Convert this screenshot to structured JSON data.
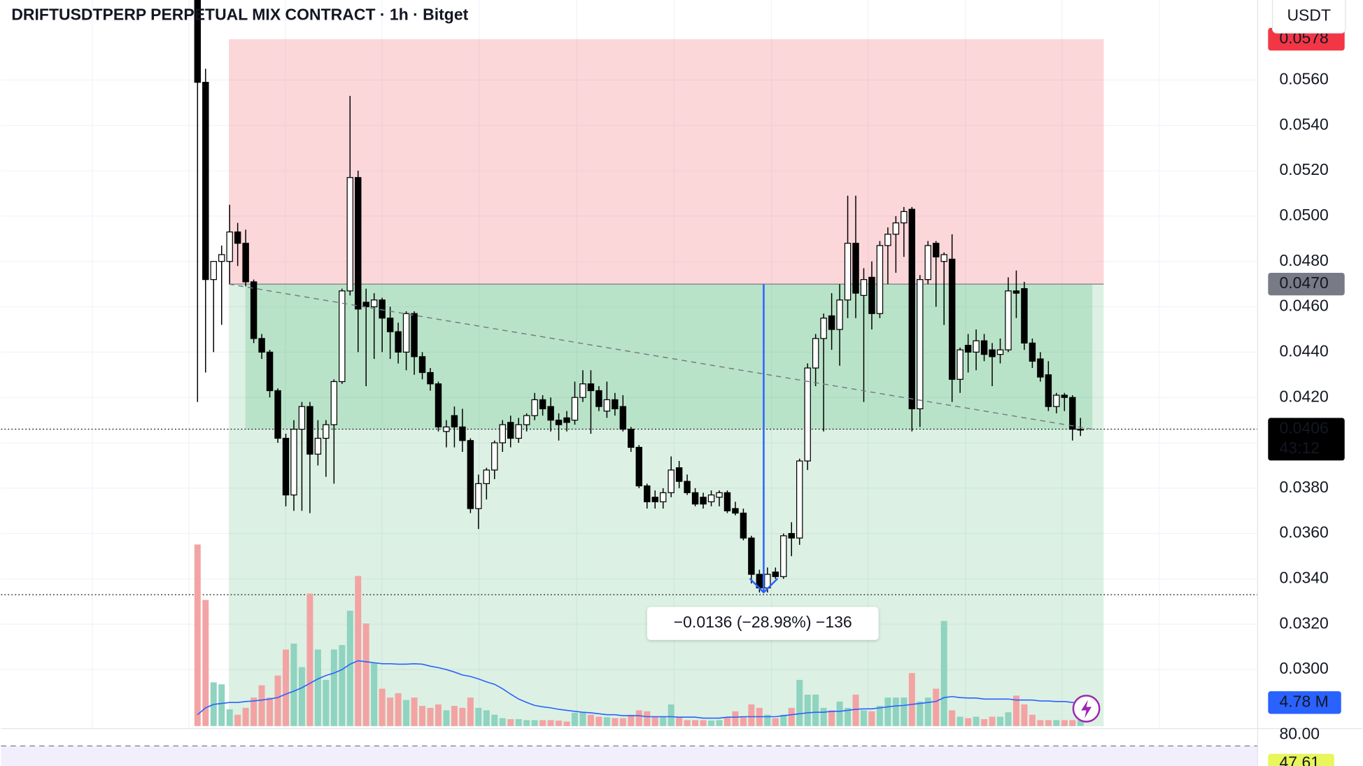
{
  "chart_data": {
    "type": "candlestick",
    "title": "DRIFTUSDTPERP PERPETUAL MIX CONTRACT · 1h · Bitget",
    "unit": "USDT",
    "open": [
      0.06,
      0.0559,
      0.0472,
      0.048,
      0.048,
      0.0493,
      0.0488,
      0.0471,
      0.0446,
      0.044,
      0.0423,
      0.0402,
      0.0377,
      0.0406,
      0.0416,
      0.0395,
      0.0402,
      0.0408,
      0.0427,
      0.0467,
      0.0517,
      0.0462,
      0.046,
      0.0463,
      0.0455,
      0.0449,
      0.044,
      0.0457,
      0.0438,
      0.0431,
      0.0426,
      0.0405,
      0.0412,
      0.0407,
      0.0401,
      0.0371,
      0.0382,
      0.0388,
      0.04,
      0.0409,
      0.0402,
      0.0408,
      0.0412,
      0.0419,
      0.0416,
      0.041,
      0.0411,
      0.041,
      0.042,
      0.0426,
      0.0423,
      0.0414,
      0.0419,
      0.0416,
      0.0406,
      0.0398,
      0.0381,
      0.0376,
      0.0374,
      0.0378,
      0.0389,
      0.0383,
      0.0378,
      0.0376,
      0.0374,
      0.0376,
      0.0378,
      0.0371,
      0.0369,
      0.0358,
      0.0342,
      0.0336,
      0.0343,
      0.0341,
      0.036,
      0.0358,
      0.0392,
      0.0433,
      0.0446,
      0.0456,
      0.045,
      0.0463,
      0.0488,
      0.0465,
      0.0473,
      0.0457,
      0.0487,
      0.0492,
      0.0497,
      0.0503,
      0.0415,
      0.0472,
      0.0488,
      0.048,
      0.0481,
      0.0428,
      0.0443,
      0.044,
      0.0445,
      0.0441,
      0.0439,
      0.0441,
      0.0467,
      0.0468,
      0.0444,
      0.0437,
      0.043,
      0.0416,
      0.0421,
      0.042,
      0.0406
    ],
    "high": [
      0.061,
      0.0565,
      0.048,
      0.0487,
      0.0505,
      0.0497,
      0.0494,
      0.0472,
      0.0448,
      0.0441,
      0.0424,
      0.0404,
      0.041,
      0.0418,
      0.0418,
      0.041,
      0.041,
      0.0428,
      0.0468,
      0.0553,
      0.052,
      0.0468,
      0.0466,
      0.0464,
      0.046,
      0.0453,
      0.0458,
      0.0458,
      0.044,
      0.0433,
      0.0427,
      0.041,
      0.0416,
      0.0415,
      0.0402,
      0.0386,
      0.0389,
      0.0401,
      0.041,
      0.0412,
      0.0411,
      0.0413,
      0.0422,
      0.0421,
      0.042,
      0.0413,
      0.0414,
      0.0427,
      0.0432,
      0.0432,
      0.0425,
      0.0427,
      0.0422,
      0.0421,
      0.0407,
      0.0399,
      0.0382,
      0.0379,
      0.038,
      0.0394,
      0.0392,
      0.0386,
      0.038,
      0.0378,
      0.0379,
      0.0379,
      0.0379,
      0.0374,
      0.0371,
      0.0359,
      0.0344,
      0.0345,
      0.0345,
      0.036,
      0.0365,
      0.0393,
      0.0435,
      0.0448,
      0.0457,
      0.0466,
      0.047,
      0.0509,
      0.0509,
      0.0477,
      0.048,
      0.0489,
      0.0495,
      0.05,
      0.0504,
      0.0504,
      0.0474,
      0.0489,
      0.0489,
      0.0484,
      0.0492,
      0.0442,
      0.0448,
      0.045,
      0.0448,
      0.0444,
      0.0446,
      0.0473,
      0.0476,
      0.0471,
      0.0446,
      0.044,
      0.0436,
      0.0422,
      0.0422,
      0.0421,
      0.0411
    ],
    "low": [
      0.0418,
      0.0431,
      0.044,
      0.0452,
      0.047,
      0.0478,
      0.0469,
      0.0444,
      0.0437,
      0.042,
      0.04,
      0.0372,
      0.037,
      0.037,
      0.0369,
      0.039,
      0.0385,
      0.0382,
      0.0426,
      0.0465,
      0.044,
      0.0425,
      0.0437,
      0.044,
      0.0437,
      0.0435,
      0.0432,
      0.043,
      0.0428,
      0.0423,
      0.0405,
      0.0398,
      0.0398,
      0.0396,
      0.0369,
      0.0362,
      0.0375,
      0.0384,
      0.0396,
      0.0398,
      0.04,
      0.0405,
      0.041,
      0.0412,
      0.0405,
      0.0401,
      0.0405,
      0.0408,
      0.0418,
      0.0404,
      0.0414,
      0.0411,
      0.0412,
      0.0405,
      0.0396,
      0.038,
      0.0371,
      0.0371,
      0.0371,
      0.0376,
      0.038,
      0.0377,
      0.0372,
      0.0371,
      0.0372,
      0.0372,
      0.0369,
      0.0368,
      0.0357,
      0.0338,
      0.0334,
      0.0334,
      0.034,
      0.034,
      0.035,
      0.0355,
      0.0388,
      0.0425,
      0.0405,
      0.0441,
      0.0434,
      0.0455,
      0.0455,
      0.0418,
      0.045,
      0.0455,
      0.047,
      0.0475,
      0.0482,
      0.0405,
      0.0407,
      0.047,
      0.046,
      0.0452,
      0.0418,
      0.0422,
      0.0431,
      0.0432,
      0.0436,
      0.0425,
      0.0435,
      0.044,
      0.0455,
      0.0441,
      0.0433,
      0.0427,
      0.0414,
      0.0413,
      0.0414,
      0.0401,
      0.0403
    ],
    "close": [
      0.0559,
      0.0472,
      0.048,
      0.0483,
      0.0493,
      0.0488,
      0.0471,
      0.0446,
      0.044,
      0.0423,
      0.0402,
      0.0377,
      0.0406,
      0.0416,
      0.0395,
      0.0402,
      0.0408,
      0.0427,
      0.0467,
      0.0517,
      0.0459,
      0.046,
      0.0463,
      0.0455,
      0.0449,
      0.044,
      0.0457,
      0.0438,
      0.0431,
      0.0426,
      0.0407,
      0.0407,
      0.0407,
      0.0401,
      0.0371,
      0.0382,
      0.0388,
      0.04,
      0.0408,
      0.0402,
      0.0408,
      0.0412,
      0.0419,
      0.0415,
      0.041,
      0.0408,
      0.0409,
      0.042,
      0.0426,
      0.0423,
      0.0416,
      0.0419,
      0.0415,
      0.0406,
      0.0398,
      0.0381,
      0.0374,
      0.0374,
      0.0378,
      0.0388,
      0.0383,
      0.0378,
      0.0373,
      0.0373,
      0.0377,
      0.0378,
      0.037,
      0.0369,
      0.0358,
      0.0342,
      0.0336,
      0.0342,
      0.0341,
      0.0359,
      0.0358,
      0.0392,
      0.0433,
      0.0446,
      0.0455,
      0.045,
      0.0463,
      0.0488,
      0.0466,
      0.0472,
      0.0457,
      0.0487,
      0.0492,
      0.0497,
      0.0502,
      0.0415,
      0.0472,
      0.0487,
      0.0482,
      0.0483,
      0.0428,
      0.0441,
      0.044,
      0.0445,
      0.0439,
      0.0438,
      0.0441,
      0.0467,
      0.0466,
      0.0444,
      0.0436,
      0.0429,
      0.0416,
      0.0421,
      0.042,
      0.0406,
      0.0406
    ],
    "up_color": "#ffffff",
    "down_color": "#000000",
    "ylim": [
      0.02751,
      0.05953
    ],
    "yticks": [
      {
        "value": 0.03,
        "label": "0.0300"
      },
      {
        "value": 0.032,
        "label": "0.0320"
      },
      {
        "value": 0.034,
        "label": "0.0340"
      },
      {
        "value": 0.036,
        "label": "0.0360"
      },
      {
        "value": 0.038,
        "label": "0.0380"
      },
      {
        "value": 0.04,
        "label": "0.0400"
      },
      {
        "value": 0.042,
        "label": "0.0420"
      },
      {
        "value": 0.044,
        "label": "0.0440"
      },
      {
        "value": 0.046,
        "label": "0.0460"
      },
      {
        "value": 0.048,
        "label": "0.0480"
      },
      {
        "value": 0.05,
        "label": "0.0500"
      },
      {
        "value": 0.052,
        "label": "0.0520"
      },
      {
        "value": 0.054,
        "label": "0.0540"
      },
      {
        "value": 0.056,
        "label": "0.0560"
      }
    ],
    "grid": true,
    "last_price_label": "0.0406",
    "countdown": "43:12",
    "horizontal_lines": [
      0.0333
    ],
    "volume": {
      "values": [
        37.0,
        25.7,
        8.9,
        8.5,
        3.4,
        2.3,
        3.7,
        5.8,
        8.3,
        5.8,
        10.3,
        15.6,
        16.8,
        12.0,
        27.0,
        15.6,
        9.4,
        15.6,
        16.5,
        23.5,
        30.6,
        20.9,
        12.9,
        7.6,
        5.8,
        6.7,
        5.3,
        5.8,
        4.1,
        3.7,
        4.4,
        3.2,
        4.1,
        3.7,
        5.8,
        3.7,
        3.2,
        2.3,
        1.6,
        1.4,
        1.4,
        1.2,
        1.2,
        1.2,
        1.2,
        1.1,
        0.9,
        2.7,
        2.7,
        2.3,
        1.9,
        1.8,
        1.6,
        1.6,
        2.3,
        3.2,
        3.0,
        1.9,
        1.9,
        4.4,
        1.9,
        1.2,
        1.2,
        1.2,
        1.1,
        1.2,
        1.8,
        3.0,
        1.9,
        4.4,
        3.7,
        2.3,
        1.6,
        2.3,
        3.7,
        9.4,
        6.4,
        6.4,
        3.7,
        3.2,
        5.0,
        3.7,
        6.4,
        3.2,
        3.0,
        4.1,
        5.8,
        5.8,
        5.8,
        10.8,
        5.0,
        5.8,
        7.6,
        21.4,
        3.2,
        1.9,
        1.6,
        1.9,
        1.4,
        1.9,
        1.9,
        2.8,
        6.2,
        4.4,
        2.3,
        1.2,
        1.2,
        1.2,
        1.2,
        1.2,
        1.2
      ],
      "ylim": [
        0,
        148
      ],
      "up_color": "#8fd3c0",
      "down_color": "#f3a3a3",
      "ma": [
        2.3,
        3.7,
        4.4,
        4.6,
        4.8,
        4.8,
        5.0,
        5.1,
        5.3,
        5.5,
        5.8,
        6.5,
        7.1,
        7.8,
        8.7,
        9.6,
        10.3,
        10.8,
        11.5,
        12.6,
        13.3,
        13.1,
        12.9,
        12.7,
        12.7,
        12.6,
        12.6,
        12.7,
        12.6,
        12.2,
        11.9,
        11.5,
        11.0,
        10.4,
        10.1,
        9.6,
        9.0,
        8.5,
        7.6,
        6.5,
        5.5,
        4.8,
        4.2,
        3.9,
        3.7,
        3.4,
        3.2,
        3.0,
        2.8,
        2.7,
        2.5,
        2.3,
        2.3,
        2.1,
        2.1,
        2.1,
        1.9,
        1.9,
        1.9,
        1.9,
        1.8,
        1.8,
        1.8,
        1.6,
        1.6,
        1.6,
        1.8,
        1.8,
        1.9,
        1.9,
        1.9,
        1.9,
        1.9,
        2.1,
        2.3,
        2.5,
        2.7,
        2.8,
        2.8,
        3.0,
        3.0,
        3.2,
        3.4,
        3.5,
        3.5,
        3.7,
        3.9,
        4.1,
        4.2,
        4.4,
        4.6,
        4.8,
        5.0,
        5.8,
        6.0,
        5.8,
        5.7,
        5.7,
        5.5,
        5.5,
        5.5,
        5.5,
        5.3,
        5.3,
        5.3,
        5.1,
        5.1,
        5.0,
        5.0,
        4.8,
        4.78
      ],
      "ma_color": "#2962ff",
      "ma_last_label": "4.78 M"
    },
    "position": {
      "entry": 0.047,
      "entry_label": "0.0470",
      "stop": 0.0578,
      "stop_label": "0.0578",
      "target": 0.0275
    },
    "trend_line": [
      0.047,
      0.0406
    ],
    "measure": {
      "from": 0.047,
      "to": 0.0334,
      "label": "−0.0136 (−28.98%) −136",
      "color": "#2962ff"
    },
    "rsi": {
      "level": {
        "value": 80,
        "label": "80.00"
      },
      "value": 47.61,
      "value_label": "47.61"
    }
  }
}
